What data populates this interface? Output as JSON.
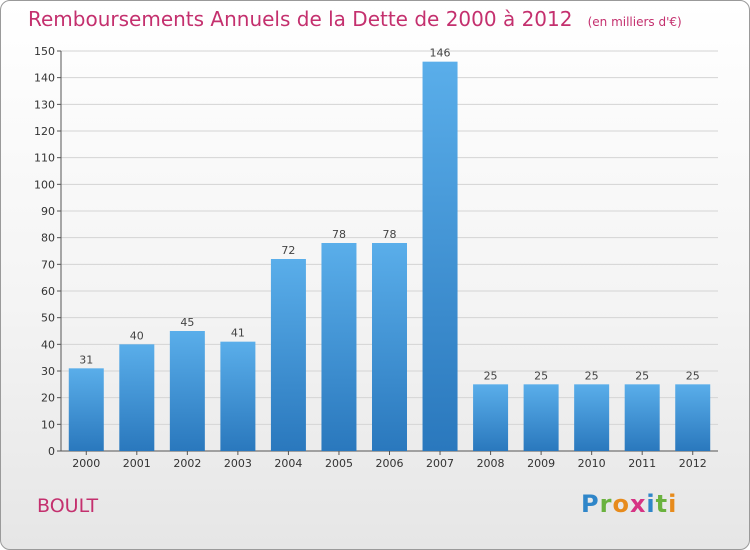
{
  "chart_data": {
    "type": "bar",
    "title": "Remboursements Annuels de la Dette de 2000 à 2012",
    "subtitle": "(en milliers d'€)",
    "xlabel": "",
    "ylabel": "",
    "categories": [
      "2000",
      "2001",
      "2002",
      "2003",
      "2004",
      "2005",
      "2006",
      "2007",
      "2008",
      "2009",
      "2010",
      "2011",
      "2012"
    ],
    "values": [
      31,
      40,
      45,
      41,
      72,
      78,
      78,
      146,
      25,
      25,
      25,
      25,
      25
    ],
    "ylim": [
      0,
      150
    ],
    "yticks": [
      0,
      10,
      20,
      30,
      40,
      50,
      60,
      70,
      80,
      90,
      100,
      110,
      120,
      130,
      140,
      150
    ],
    "grid": true,
    "bar_color": "#3a8fd4"
  },
  "place_name": "BOULT",
  "logo": {
    "text": "Proxiti",
    "letters": [
      {
        "ch": "P",
        "color": "#2f86c9"
      },
      {
        "ch": "r",
        "color": "#6ab23e"
      },
      {
        "ch": "o",
        "color": "#e78b1c"
      },
      {
        "ch": "x",
        "color": "#d63384"
      },
      {
        "ch": "i",
        "color": "#2f86c9"
      },
      {
        "ch": "t",
        "color": "#6ab23e"
      },
      {
        "ch": "i",
        "color": "#e78b1c"
      }
    ]
  }
}
